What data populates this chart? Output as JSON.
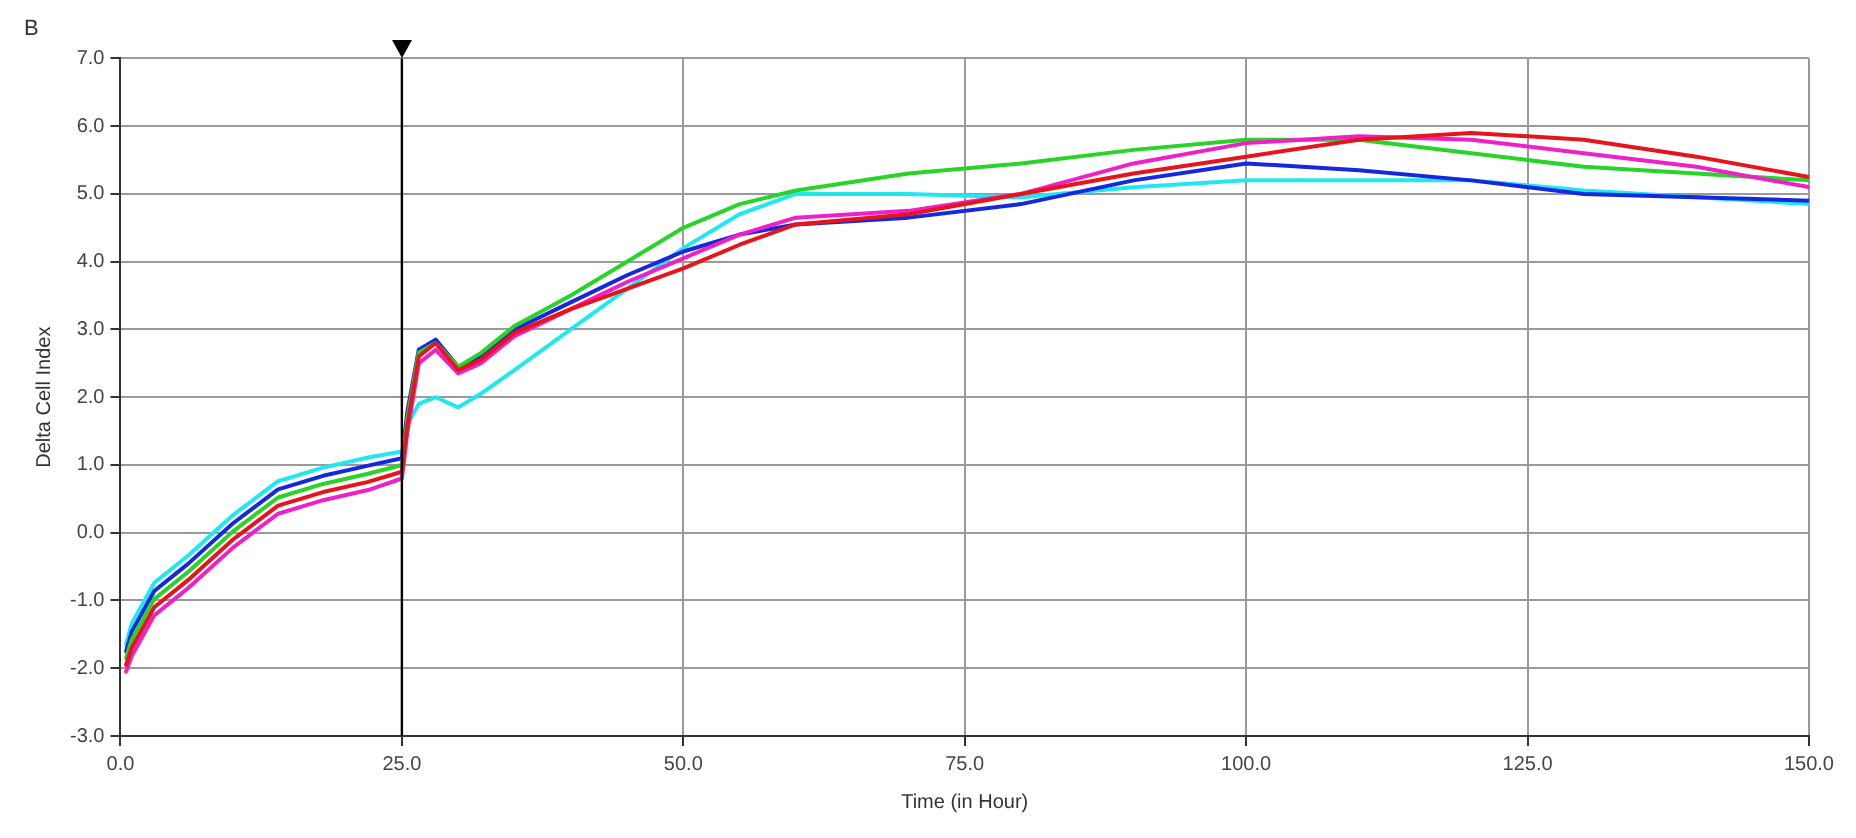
{
  "chart_data": {
    "type": "line",
    "title": "B",
    "xlabel": "Time (in Hour)",
    "ylabel": "Delta Cell Index",
    "x": [
      0.5,
      1,
      3,
      6,
      10,
      14,
      18,
      22,
      25,
      25.5,
      26.5,
      28,
      30,
      32,
      35,
      40,
      45,
      50,
      55,
      60,
      70,
      80,
      90,
      100,
      110,
      120,
      130,
      140,
      150
    ],
    "series": [
      {
        "color": "#e8141b",
        "values": [
          -1.95,
          -1.7,
          -1.1,
          -0.7,
          -0.1,
          0.4,
          0.6,
          0.75,
          0.9,
          1.6,
          2.6,
          2.8,
          2.4,
          2.55,
          2.95,
          3.3,
          3.6,
          3.9,
          4.25,
          4.55,
          4.7,
          5.0,
          5.3,
          5.55,
          5.8,
          5.9,
          5.8,
          5.55,
          5.25
        ]
      },
      {
        "color": "#f020c8",
        "values": [
          -2.05,
          -1.82,
          -1.22,
          -0.82,
          -0.22,
          0.28,
          0.48,
          0.63,
          0.8,
          1.5,
          2.5,
          2.7,
          2.35,
          2.5,
          2.9,
          3.3,
          3.7,
          4.05,
          4.4,
          4.65,
          4.75,
          5.0,
          5.45,
          5.75,
          5.85,
          5.8,
          5.6,
          5.4,
          5.1
        ]
      },
      {
        "color": "#28d428",
        "values": [
          -1.85,
          -1.58,
          -0.98,
          -0.58,
          0.02,
          0.52,
          0.72,
          0.87,
          1.0,
          1.7,
          2.66,
          2.8,
          2.45,
          2.65,
          3.05,
          3.5,
          4.0,
          4.5,
          4.85,
          5.05,
          5.3,
          5.45,
          5.65,
          5.8,
          5.8,
          5.6,
          5.4,
          5.3,
          5.2
        ]
      },
      {
        "color": "#1428e0",
        "values": [
          -1.75,
          -1.46,
          -0.86,
          -0.46,
          0.14,
          0.64,
          0.84,
          0.99,
          1.1,
          1.8,
          2.7,
          2.85,
          2.45,
          2.6,
          3.0,
          3.4,
          3.8,
          4.15,
          4.4,
          4.55,
          4.65,
          4.85,
          5.2,
          5.45,
          5.35,
          5.2,
          5.0,
          4.95,
          4.9
        ]
      },
      {
        "color": "#20e8f0",
        "values": [
          -1.65,
          -1.34,
          -0.74,
          -0.34,
          0.26,
          0.76,
          0.96,
          1.11,
          1.2,
          1.6,
          1.9,
          2.0,
          1.85,
          2.05,
          2.4,
          3.0,
          3.6,
          4.2,
          4.7,
          5.0,
          5.0,
          4.95,
          5.1,
          5.2,
          5.2,
          5.2,
          5.05,
          4.95,
          4.85
        ]
      }
    ],
    "xlim": [
      0,
      150
    ],
    "xticks": [
      {
        "value": 0,
        "label": "0.0"
      },
      {
        "value": 25,
        "label": "25.0"
      },
      {
        "value": 50,
        "label": "50.0"
      },
      {
        "value": 75,
        "label": "75.0"
      },
      {
        "value": 100,
        "label": "100.0"
      },
      {
        "value": 125,
        "label": "125.0"
      },
      {
        "value": 150,
        "label": "150.0"
      }
    ],
    "ylim": [
      -3,
      7
    ],
    "yticks": [
      {
        "value": -3,
        "label": "-3.0"
      },
      {
        "value": -2,
        "label": "-2.0"
      },
      {
        "value": -1,
        "label": "-1.0"
      },
      {
        "value": 0,
        "label": "0.0"
      },
      {
        "value": 1,
        "label": "1.0"
      },
      {
        "value": 2,
        "label": "2.0"
      },
      {
        "value": 3,
        "label": "3.0"
      },
      {
        "value": 4,
        "label": "4.0"
      },
      {
        "value": 5,
        "label": "5.0"
      },
      {
        "value": 6,
        "label": "6.0"
      },
      {
        "value": 7,
        "label": "7.0"
      }
    ],
    "ref_lines": [
      {
        "axis": "x",
        "value": 25,
        "color": "#000000"
      }
    ],
    "grid": true,
    "legend": false,
    "marker": "none",
    "line_style": "solid"
  }
}
